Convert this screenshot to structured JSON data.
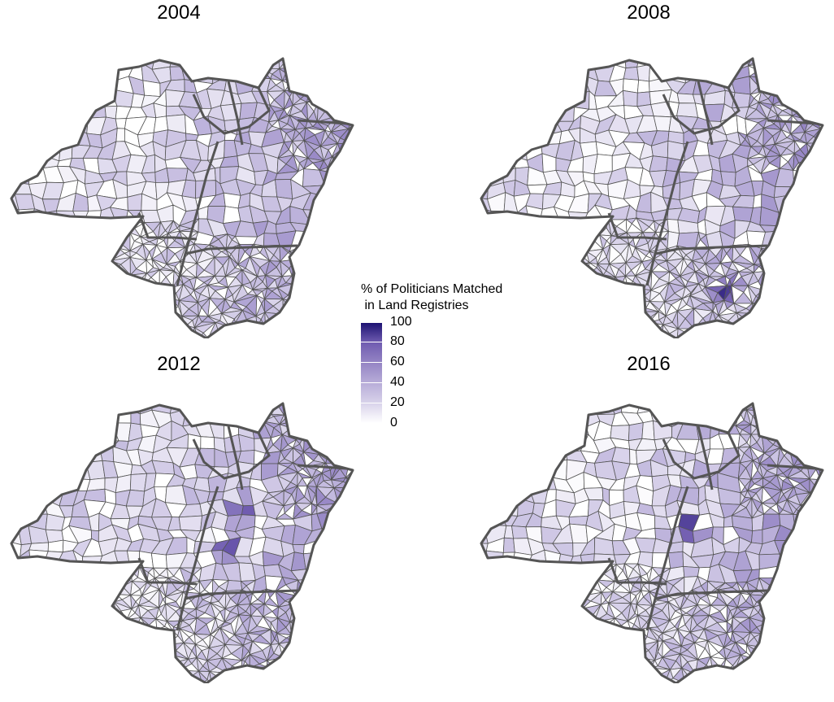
{
  "panels": [
    {
      "year": "2004",
      "seed": 11,
      "hot": []
    },
    {
      "year": "2008",
      "seed": 27,
      "hot": [
        [
          310,
          290
        ]
      ]
    },
    {
      "year": "2012",
      "seed": 43,
      "hot": [
        [
          290,
          140
        ],
        [
          270,
          180
        ]
      ]
    },
    {
      "year": "2016",
      "seed": 59,
      "hot": [
        [
          265,
          160
        ]
      ]
    }
  ],
  "legend": {
    "title": "% of Politicians Matched\n in Land Registries",
    "ticks": [
      "100",
      "80",
      "60",
      "40",
      "20",
      "0"
    ]
  },
  "colors": {
    "low": "#ffffff",
    "high": "#1a1070",
    "border": "#555555",
    "state_border": "#555555"
  }
}
